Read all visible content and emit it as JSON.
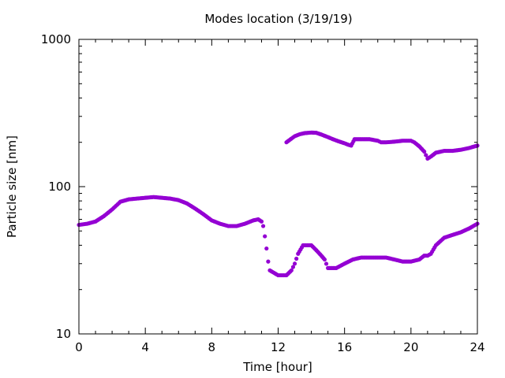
{
  "chart_data": {
    "type": "scatter",
    "title": "Modes location (3/19/19)",
    "xlabel": "Time [hour]",
    "ylabel": "Particle size [nm]",
    "xlim": [
      0,
      24
    ],
    "ylim": [
      10,
      1000
    ],
    "yscale": "log",
    "grid": false,
    "legend": "none",
    "marker_color": "#9400d3",
    "x_ticks": [
      0,
      4,
      8,
      12,
      16,
      20,
      24
    ],
    "x_tick_labels": [
      "0",
      "4",
      "8",
      "12",
      "16",
      "20",
      "24"
    ],
    "y_ticks": [
      10,
      100,
      1000
    ],
    "y_tick_labels": [
      "10",
      "100",
      "1000"
    ],
    "series": [
      {
        "x": [
          0,
          0.5,
          1,
          1.5,
          2,
          2.5,
          3,
          3.5,
          4,
          4.5,
          5,
          5.5,
          6,
          6.5,
          7,
          7.5,
          8,
          8.5,
          9,
          9.5,
          10,
          10.5,
          10.8,
          11,
          11.1,
          11.2,
          11.3,
          11.4,
          11.5,
          12,
          12.5,
          12.8,
          13,
          13.2,
          13.5,
          14,
          14.3,
          14.6,
          14.8,
          15,
          15.5,
          16,
          16.5,
          17,
          17.5,
          18,
          18.5,
          19,
          19.5,
          20,
          20.5,
          20.8,
          21,
          21.2,
          21.5,
          22,
          22.5,
          23,
          23.5,
          24
        ],
        "y": [
          55,
          56,
          58,
          63,
          70,
          79,
          82,
          83,
          84,
          85,
          84,
          83,
          81,
          77,
          71,
          65,
          59,
          56,
          54,
          54,
          56,
          59,
          60,
          58,
          54,
          46,
          38,
          31,
          27,
          25,
          25,
          27,
          30,
          35,
          40,
          40,
          37,
          34,
          32,
          28,
          28,
          30,
          32,
          33,
          33,
          33,
          33,
          32,
          31,
          31,
          32,
          34,
          34,
          35,
          40,
          45,
          47,
          49,
          52,
          56
        ]
      },
      {
        "x": [
          12.5,
          12.8,
          13,
          13.3,
          13.6,
          14,
          14.3,
          14.6,
          15,
          15.3,
          15.6,
          16,
          16.2,
          16.4,
          16.6,
          17,
          17.5,
          18,
          18.2,
          18.5,
          19,
          19.5,
          20,
          20.2,
          20.5,
          20.8,
          21,
          21.2,
          21.5,
          22,
          22.5,
          23,
          23.5,
          24
        ],
        "y": [
          200,
          212,
          220,
          227,
          231,
          233,
          232,
          226,
          217,
          210,
          204,
          197,
          193,
          190,
          210,
          210,
          210,
          205,
          200,
          200,
          202,
          205,
          205,
          200,
          188,
          173,
          155,
          160,
          170,
          175,
          175,
          178,
          183,
          190
        ]
      }
    ]
  }
}
